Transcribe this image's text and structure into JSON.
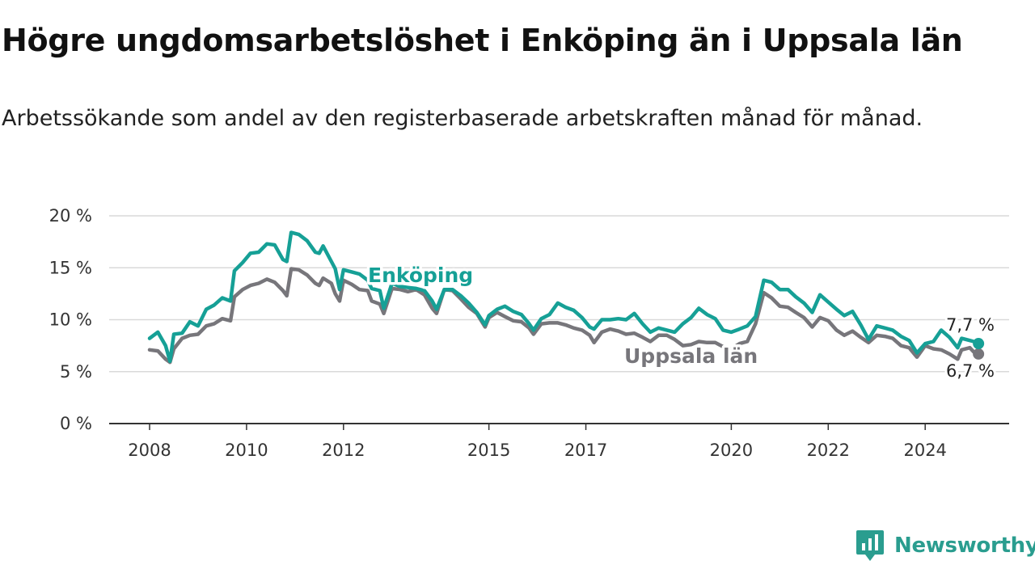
{
  "title": "Högre ungdomsarbetslöshet i Enköping än i Uppsala län",
  "subtitle": "Arbetssökande som andel av den registerbaserade arbetskraften månad för månad.",
  "brand": {
    "name": "Newsworthy",
    "icon": "bar-chart-badge-icon",
    "color": "#2a9d8f"
  },
  "chart_data": {
    "type": "line",
    "ylim": [
      0,
      20
    ],
    "xlim": [
      2008.0,
      2025.1
    ],
    "y_ticks": [
      {
        "value": 0,
        "label": "0 %"
      },
      {
        "value": 5,
        "label": "5 %"
      },
      {
        "value": 10,
        "label": "10 %"
      },
      {
        "value": 15,
        "label": "15 %"
      },
      {
        "value": 20,
        "label": "20 %"
      }
    ],
    "x_ticks": [
      {
        "value": 2008,
        "label": "2008"
      },
      {
        "value": 2010,
        "label": "2010"
      },
      {
        "value": 2012,
        "label": "2012"
      },
      {
        "value": 2015,
        "label": "2015"
      },
      {
        "value": 2017,
        "label": "2017"
      },
      {
        "value": 2020,
        "label": "2020"
      },
      {
        "value": 2022,
        "label": "2022"
      },
      {
        "value": 2024,
        "label": "2024"
      }
    ],
    "grid": true,
    "legend": "inline labels",
    "series": [
      {
        "name": "Uppsala län",
        "color": "#77767b",
        "end_label": "6,7 %",
        "points": [
          [
            2008.0,
            7.1
          ],
          [
            2008.17,
            7.0
          ],
          [
            2008.33,
            6.2
          ],
          [
            2008.42,
            5.9
          ],
          [
            2008.5,
            7.2
          ],
          [
            2008.67,
            8.2
          ],
          [
            2008.83,
            8.5
          ],
          [
            2009.0,
            8.6
          ],
          [
            2009.17,
            9.4
          ],
          [
            2009.33,
            9.6
          ],
          [
            2009.5,
            10.1
          ],
          [
            2009.67,
            9.9
          ],
          [
            2009.75,
            12.2
          ],
          [
            2009.92,
            12.9
          ],
          [
            2010.08,
            13.3
          ],
          [
            2010.25,
            13.5
          ],
          [
            2010.42,
            13.9
          ],
          [
            2010.58,
            13.6
          ],
          [
            2010.75,
            12.8
          ],
          [
            2010.83,
            12.3
          ],
          [
            2010.92,
            14.9
          ],
          [
            2011.08,
            14.8
          ],
          [
            2011.25,
            14.3
          ],
          [
            2011.42,
            13.5
          ],
          [
            2011.5,
            13.3
          ],
          [
            2011.58,
            14.0
          ],
          [
            2011.75,
            13.5
          ],
          [
            2011.83,
            12.5
          ],
          [
            2011.92,
            11.8
          ],
          [
            2012.0,
            13.8
          ],
          [
            2012.17,
            13.4
          ],
          [
            2012.33,
            12.9
          ],
          [
            2012.5,
            12.8
          ],
          [
            2012.58,
            11.8
          ],
          [
            2012.75,
            11.5
          ],
          [
            2012.83,
            10.6
          ],
          [
            2013.0,
            13.0
          ],
          [
            2013.17,
            12.9
          ],
          [
            2013.33,
            12.7
          ],
          [
            2013.5,
            12.9
          ],
          [
            2013.67,
            12.4
          ],
          [
            2013.83,
            11.1
          ],
          [
            2013.92,
            10.6
          ],
          [
            2014.08,
            12.9
          ],
          [
            2014.25,
            12.8
          ],
          [
            2014.42,
            12.0
          ],
          [
            2014.58,
            11.2
          ],
          [
            2014.75,
            10.6
          ],
          [
            2014.92,
            9.3
          ],
          [
            2015.0,
            10.2
          ],
          [
            2015.17,
            10.7
          ],
          [
            2015.33,
            10.3
          ],
          [
            2015.5,
            9.9
          ],
          [
            2015.67,
            9.8
          ],
          [
            2015.83,
            9.2
          ],
          [
            2015.92,
            8.6
          ],
          [
            2016.08,
            9.6
          ],
          [
            2016.25,
            9.7
          ],
          [
            2016.42,
            9.7
          ],
          [
            2016.58,
            9.5
          ],
          [
            2016.75,
            9.2
          ],
          [
            2016.92,
            9.0
          ],
          [
            2017.08,
            8.5
          ],
          [
            2017.17,
            7.8
          ],
          [
            2017.33,
            8.8
          ],
          [
            2017.5,
            9.1
          ],
          [
            2017.67,
            8.9
          ],
          [
            2017.83,
            8.6
          ],
          [
            2018.0,
            8.7
          ],
          [
            2018.17,
            8.3
          ],
          [
            2018.33,
            7.9
          ],
          [
            2018.5,
            8.5
          ],
          [
            2018.67,
            8.5
          ],
          [
            2018.83,
            8.1
          ],
          [
            2019.0,
            7.5
          ],
          [
            2019.17,
            7.6
          ],
          [
            2019.33,
            7.9
          ],
          [
            2019.5,
            7.8
          ],
          [
            2019.67,
            7.8
          ],
          [
            2019.83,
            7.4
          ],
          [
            2020.0,
            7.2
          ],
          [
            2020.17,
            7.7
          ],
          [
            2020.33,
            7.9
          ],
          [
            2020.5,
            9.6
          ],
          [
            2020.67,
            12.6
          ],
          [
            2020.83,
            12.1
          ],
          [
            2021.0,
            11.3
          ],
          [
            2021.17,
            11.2
          ],
          [
            2021.33,
            10.7
          ],
          [
            2021.5,
            10.2
          ],
          [
            2021.67,
            9.3
          ],
          [
            2021.83,
            10.2
          ],
          [
            2022.0,
            9.9
          ],
          [
            2022.17,
            9.0
          ],
          [
            2022.33,
            8.5
          ],
          [
            2022.5,
            8.9
          ],
          [
            2022.67,
            8.3
          ],
          [
            2022.83,
            7.8
          ],
          [
            2023.0,
            8.5
          ],
          [
            2023.17,
            8.4
          ],
          [
            2023.33,
            8.2
          ],
          [
            2023.5,
            7.5
          ],
          [
            2023.67,
            7.3
          ],
          [
            2023.83,
            6.4
          ],
          [
            2024.0,
            7.5
          ],
          [
            2024.17,
            7.2
          ],
          [
            2024.33,
            7.1
          ],
          [
            2024.5,
            6.7
          ],
          [
            2024.67,
            6.2
          ],
          [
            2024.75,
            7.1
          ],
          [
            2024.92,
            7.3
          ],
          [
            2025.0,
            6.9
          ],
          [
            2025.1,
            6.7
          ]
        ]
      },
      {
        "name": "Enköping",
        "color": "#16a096",
        "end_label": "7,7 %",
        "points": [
          [
            2008.0,
            8.2
          ],
          [
            2008.17,
            8.8
          ],
          [
            2008.33,
            7.5
          ],
          [
            2008.42,
            6.0
          ],
          [
            2008.5,
            8.6
          ],
          [
            2008.67,
            8.7
          ],
          [
            2008.83,
            9.8
          ],
          [
            2009.0,
            9.4
          ],
          [
            2009.17,
            11.0
          ],
          [
            2009.33,
            11.4
          ],
          [
            2009.5,
            12.1
          ],
          [
            2009.67,
            11.8
          ],
          [
            2009.75,
            14.7
          ],
          [
            2009.92,
            15.5
          ],
          [
            2010.08,
            16.4
          ],
          [
            2010.25,
            16.5
          ],
          [
            2010.42,
            17.3
          ],
          [
            2010.58,
            17.2
          ],
          [
            2010.75,
            15.8
          ],
          [
            2010.83,
            15.6
          ],
          [
            2010.92,
            18.4
          ],
          [
            2011.08,
            18.2
          ],
          [
            2011.25,
            17.6
          ],
          [
            2011.42,
            16.5
          ],
          [
            2011.5,
            16.4
          ],
          [
            2011.58,
            17.1
          ],
          [
            2011.75,
            15.6
          ],
          [
            2011.83,
            14.9
          ],
          [
            2011.92,
            12.9
          ],
          [
            2012.0,
            14.8
          ],
          [
            2012.17,
            14.6
          ],
          [
            2012.33,
            14.4
          ],
          [
            2012.5,
            13.8
          ],
          [
            2012.58,
            13.0
          ],
          [
            2012.75,
            12.8
          ],
          [
            2012.83,
            11.1
          ],
          [
            2013.0,
            13.5
          ],
          [
            2013.17,
            13.2
          ],
          [
            2013.33,
            13.1
          ],
          [
            2013.5,
            13.0
          ],
          [
            2013.67,
            12.8
          ],
          [
            2013.83,
            11.8
          ],
          [
            2013.92,
            11.0
          ],
          [
            2014.08,
            12.9
          ],
          [
            2014.25,
            12.9
          ],
          [
            2014.42,
            12.3
          ],
          [
            2014.58,
            11.6
          ],
          [
            2014.75,
            10.7
          ],
          [
            2014.92,
            9.5
          ],
          [
            2015.0,
            10.4
          ],
          [
            2015.17,
            11.0
          ],
          [
            2015.33,
            11.3
          ],
          [
            2015.5,
            10.8
          ],
          [
            2015.67,
            10.5
          ],
          [
            2015.83,
            9.6
          ],
          [
            2015.92,
            9.0
          ],
          [
            2016.08,
            10.1
          ],
          [
            2016.25,
            10.5
          ],
          [
            2016.42,
            11.6
          ],
          [
            2016.58,
            11.2
          ],
          [
            2016.75,
            10.9
          ],
          [
            2016.92,
            10.2
          ],
          [
            2017.08,
            9.3
          ],
          [
            2017.17,
            9.1
          ],
          [
            2017.33,
            10.0
          ],
          [
            2017.5,
            10.0
          ],
          [
            2017.67,
            10.1
          ],
          [
            2017.83,
            10.0
          ],
          [
            2018.0,
            10.6
          ],
          [
            2018.17,
            9.6
          ],
          [
            2018.33,
            8.8
          ],
          [
            2018.5,
            9.2
          ],
          [
            2018.67,
            9.0
          ],
          [
            2018.83,
            8.8
          ],
          [
            2019.0,
            9.6
          ],
          [
            2019.17,
            10.2
          ],
          [
            2019.33,
            11.1
          ],
          [
            2019.5,
            10.5
          ],
          [
            2019.67,
            10.1
          ],
          [
            2019.83,
            9.0
          ],
          [
            2020.0,
            8.8
          ],
          [
            2020.17,
            9.1
          ],
          [
            2020.33,
            9.4
          ],
          [
            2020.5,
            10.3
          ],
          [
            2020.67,
            13.8
          ],
          [
            2020.83,
            13.6
          ],
          [
            2021.0,
            12.9
          ],
          [
            2021.17,
            12.9
          ],
          [
            2021.33,
            12.2
          ],
          [
            2021.5,
            11.6
          ],
          [
            2021.67,
            10.7
          ],
          [
            2021.83,
            12.4
          ],
          [
            2022.0,
            11.7
          ],
          [
            2022.17,
            11.0
          ],
          [
            2022.33,
            10.4
          ],
          [
            2022.5,
            10.8
          ],
          [
            2022.67,
            9.5
          ],
          [
            2022.83,
            8.1
          ],
          [
            2023.0,
            9.4
          ],
          [
            2023.17,
            9.2
          ],
          [
            2023.33,
            9.0
          ],
          [
            2023.5,
            8.4
          ],
          [
            2023.67,
            8.0
          ],
          [
            2023.83,
            6.8
          ],
          [
            2024.0,
            7.7
          ],
          [
            2024.17,
            7.9
          ],
          [
            2024.33,
            9.0
          ],
          [
            2024.5,
            8.3
          ],
          [
            2024.67,
            7.3
          ],
          [
            2024.75,
            8.2
          ],
          [
            2024.92,
            8.0
          ],
          [
            2025.0,
            7.9
          ],
          [
            2025.1,
            7.7
          ]
        ]
      }
    ]
  }
}
